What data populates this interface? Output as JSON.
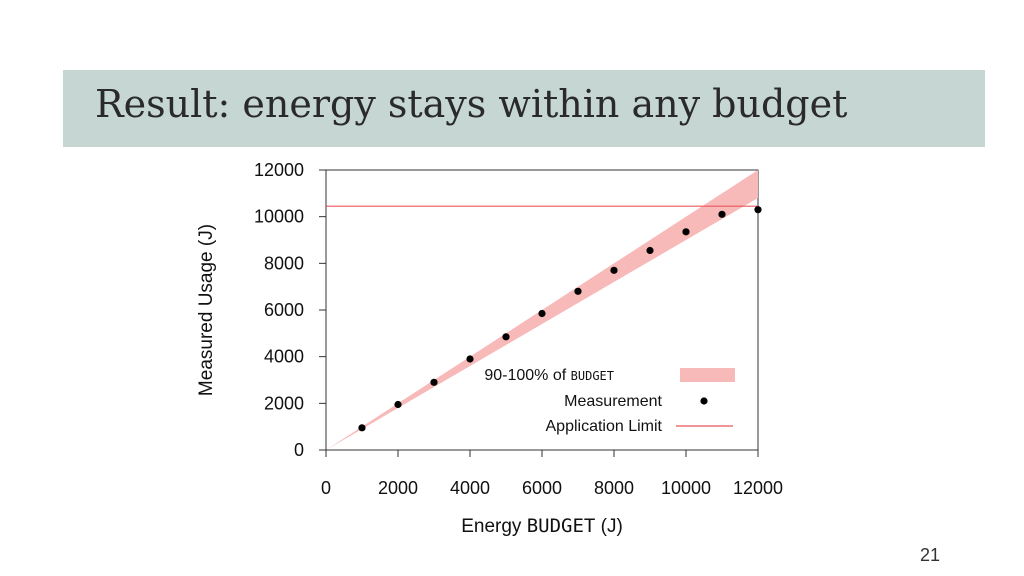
{
  "slide": {
    "title": "Result: energy stays within any budget",
    "page_number": "21"
  },
  "chart_data": {
    "type": "scatter",
    "xlabel_main": "Energy",
    "xlabel_tag": "BUDGET",
    "xlabel_unit": "(J)",
    "ylabel": "Measured Usage (J)",
    "xlim": [
      0,
      12000
    ],
    "ylim": [
      0,
      12000
    ],
    "x_ticks": [
      "0",
      "2000",
      "4000",
      "6000",
      "8000",
      "10000",
      "12000"
    ],
    "y_ticks": [
      "0",
      "2000",
      "4000",
      "6000",
      "8000",
      "10000",
      "12000"
    ],
    "grid": false,
    "legend_position": "bottom-right",
    "band": {
      "name_prefix": "90-100% of",
      "name_tag": "BUDGET",
      "lower_fraction": 0.9,
      "upper_fraction": 1.0,
      "color": "#f8b9b9"
    },
    "series": [
      {
        "name": "Measurement",
        "x": [
          1000,
          2000,
          3000,
          4000,
          5000,
          6000,
          7000,
          8000,
          9000,
          10000,
          11000,
          12000
        ],
        "y": [
          950,
          1950,
          2900,
          3900,
          4850,
          5850,
          6800,
          7700,
          8550,
          9350,
          10100,
          10300
        ],
        "color": "#000000"
      }
    ],
    "limit_line": {
      "name": "Application Limit",
      "y": 10450,
      "color": "#e8585c"
    }
  }
}
